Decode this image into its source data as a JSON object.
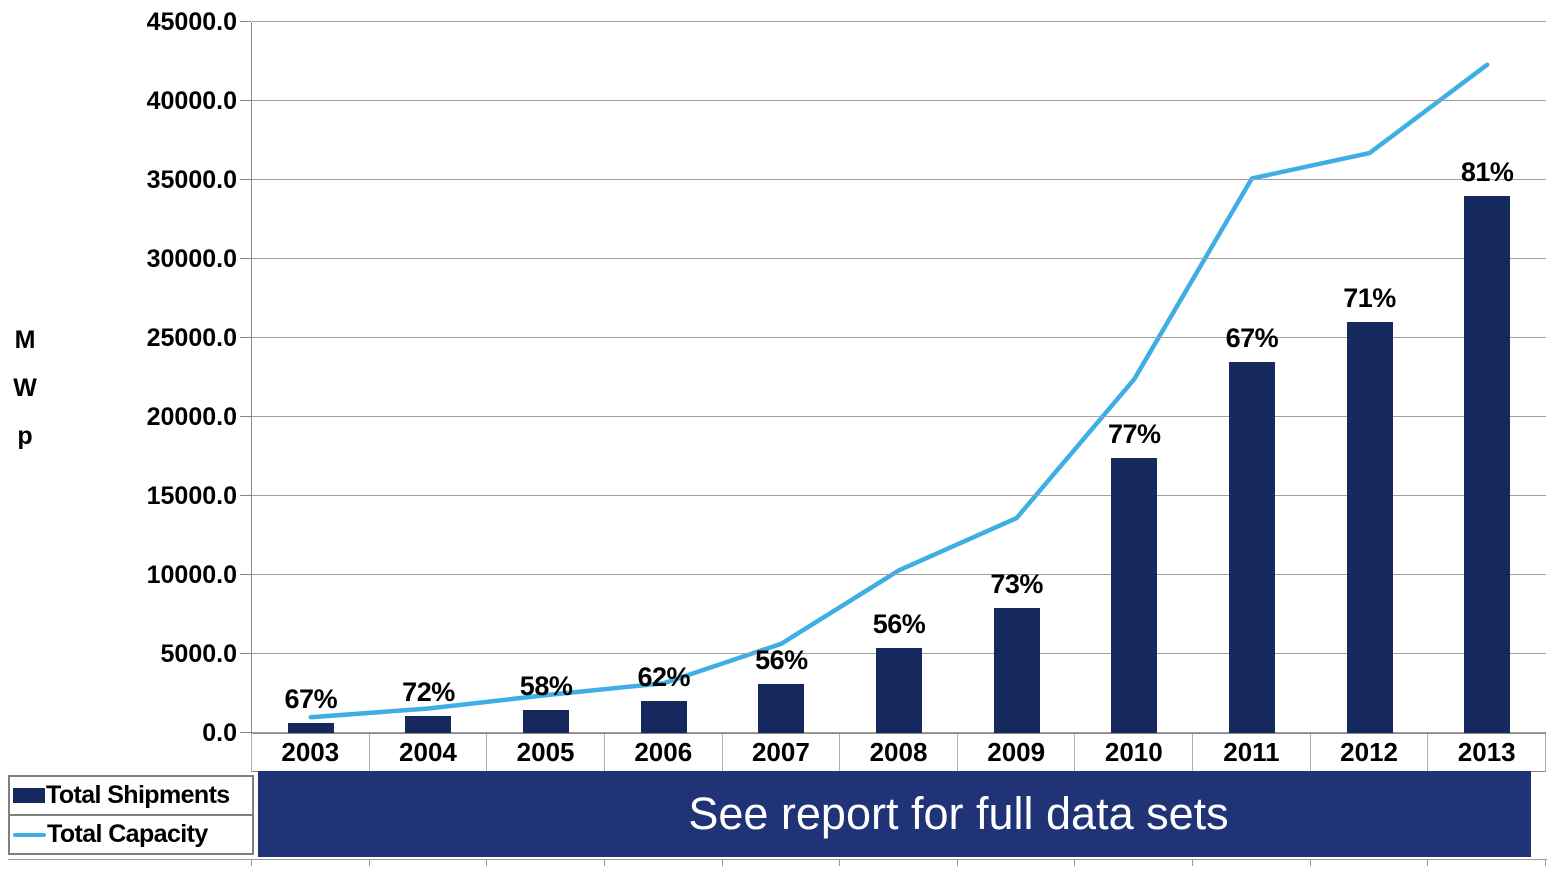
{
  "banner": {
    "text": "See report for full data sets"
  },
  "legend": {
    "items": [
      {
        "label": "Total Shipments",
        "swatch": "bar"
      },
      {
        "label": "Total Capacity",
        "swatch": "line"
      }
    ]
  },
  "colors": {
    "bar": "#16295e",
    "line": "#3faee4",
    "banner": "#203377",
    "gridline": "#a0a0a0",
    "text": "#000000",
    "banner_text": "#ffffff"
  },
  "chart_data": {
    "type": "bar",
    "subtype": "bar-line-combo",
    "title": "",
    "xlabel": "",
    "ylabel": "MWp",
    "ylabel_letters": [
      "M",
      "W",
      "p"
    ],
    "ylim": [
      0,
      45000
    ],
    "grid": true,
    "legend_position": "bottom-left",
    "yticks": [
      "45000.0",
      "40000.0",
      "35000.0",
      "30000.0",
      "25000.0",
      "20000.0",
      "15000.0",
      "10000.0",
      "5000.0",
      "0.0"
    ],
    "categories": [
      "2003",
      "2004",
      "2005",
      "2006",
      "2007",
      "2008",
      "2009",
      "2010",
      "2011",
      "2012",
      "2013"
    ],
    "series": [
      {
        "name": "Total Shipments",
        "render": "bar",
        "values": [
          650,
          1050,
          1450,
          2000,
          3100,
          5400,
          7900,
          17400,
          23500,
          26000,
          34000
        ]
      },
      {
        "name": "Total Capacity",
        "render": "line",
        "values": [
          1000,
          1550,
          2400,
          3150,
          5650,
          10300,
          13600,
          22400,
          35100,
          36700,
          42300
        ]
      }
    ],
    "bar_labels": [
      "67%",
      "72%",
      "58%",
      "62%",
      "56%",
      "56%",
      "73%",
      "77%",
      "67%",
      "71%",
      "81%"
    ]
  }
}
